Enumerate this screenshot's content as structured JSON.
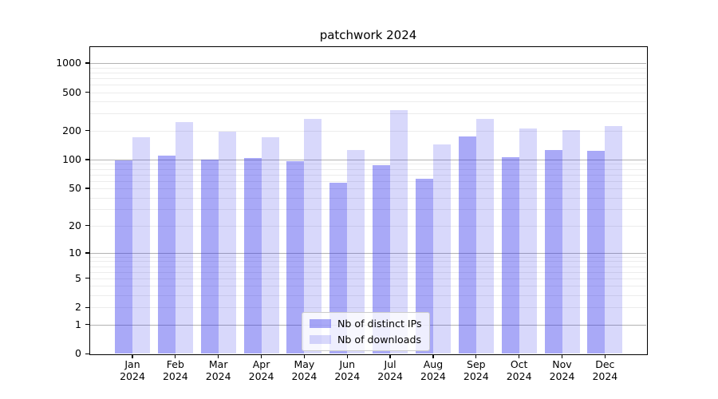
{
  "chart_data": {
    "type": "bar",
    "title": "patchwork 2024",
    "categories": [
      "Jan",
      "Feb",
      "Mar",
      "Apr",
      "May",
      "Jun",
      "Jul",
      "Aug",
      "Sep",
      "Oct",
      "Nov",
      "Dec"
    ],
    "category_year": "2024",
    "series": [
      {
        "name": "Nb of distinct IPs",
        "color": "rgba(40,40,235,0.40)",
        "values": [
          98,
          110,
          100,
          104,
          96,
          57,
          88,
          63,
          174,
          106,
          125,
          123
        ]
      },
      {
        "name": "Nb of downloads",
        "color": "rgba(40,40,235,0.18)",
        "values": [
          171,
          245,
          196,
          170,
          264,
          126,
          325,
          144,
          265,
          212,
          203,
          224
        ]
      }
    ],
    "yscale": "log1p",
    "ylim": [
      0,
      1455
    ],
    "yticks": [
      1000,
      500,
      200,
      100,
      50,
      20,
      10,
      5,
      2,
      1,
      0
    ],
    "grid_major": [
      1,
      10,
      100,
      1000
    ],
    "grid_minor": [
      2,
      3,
      4,
      5,
      6,
      7,
      8,
      9,
      20,
      30,
      40,
      50,
      60,
      70,
      80,
      90,
      200,
      300,
      400,
      500,
      600,
      700,
      800,
      900
    ],
    "legend_position": "lower center",
    "grid": true
  }
}
